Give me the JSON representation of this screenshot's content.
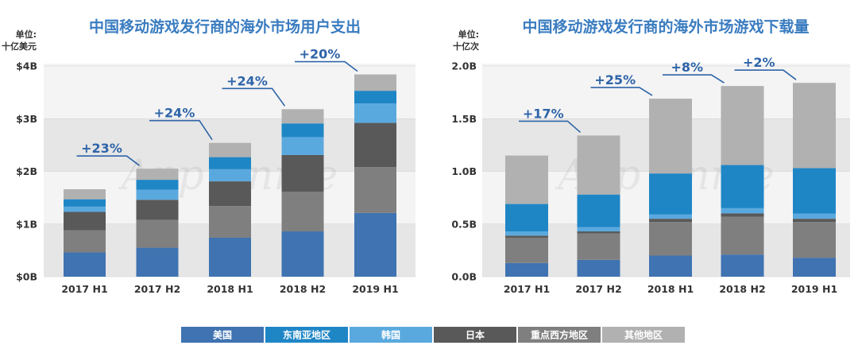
{
  "colors": {
    "美国": "#3f73b1",
    "东南亚地区": "#1f86c6",
    "韩国": "#5aa9de",
    "日本": "#595959",
    "重点西方地区": "#7f7f7f",
    "其他地区": "#b1b1b1"
  },
  "watermark": "App Annie",
  "legend": [
    {
      "name": "美国",
      "color": "#3f73b1",
      "text_color": "#ffffff"
    },
    {
      "name": "东南亚地区",
      "color": "#1f86c6",
      "text_color": "#ffffff"
    },
    {
      "name": "韩国",
      "color": "#5aa9de",
      "text_color": "#ffffff"
    },
    {
      "name": "日本",
      "color": "#595959",
      "text_color": "#ffffff"
    },
    {
      "name": "重点西方地区",
      "color": "#7f7f7f",
      "text_color": "#ffffff"
    },
    {
      "name": "其他地区",
      "color": "#b1b1b1",
      "text_color": "#ffffff"
    }
  ],
  "chart_data": [
    {
      "type": "bar",
      "stacked": true,
      "title": "中国移动游戏发行商的海外市场用户支出",
      "unit_line1": "单位:",
      "unit_line2": "十亿美元",
      "categories": [
        "2017 H1",
        "2017 H2",
        "2018 H1",
        "2018 H2",
        "2019 H1"
      ],
      "ylim": [
        0,
        4
      ],
      "yticks": [
        {
          "value": 0,
          "label": "$0B"
        },
        {
          "value": 1,
          "label": "$1B"
        },
        {
          "value": 2,
          "label": "$2B"
        },
        {
          "value": 3,
          "label": "$3B"
        },
        {
          "value": 4,
          "label": "$4B"
        }
      ],
      "series": [
        {
          "name": "美国",
          "values": [
            0.46,
            0.55,
            0.74,
            0.86,
            1.21
          ]
        },
        {
          "name": "重点西方地区",
          "values": [
            0.42,
            0.53,
            0.6,
            0.75,
            0.87
          ]
        },
        {
          "name": "日本",
          "values": [
            0.35,
            0.38,
            0.47,
            0.7,
            0.84
          ]
        },
        {
          "name": "韩国",
          "values": [
            0.1,
            0.19,
            0.23,
            0.34,
            0.37
          ]
        },
        {
          "name": "东南亚地区",
          "values": [
            0.14,
            0.19,
            0.23,
            0.26,
            0.24
          ]
        },
        {
          "name": "其他地区",
          "values": [
            0.19,
            0.21,
            0.27,
            0.27,
            0.31
          ]
        }
      ],
      "growth_labels": [
        {
          "from": 0,
          "to": 1,
          "label": "+23%"
        },
        {
          "from": 1,
          "to": 2,
          "label": "+24%"
        },
        {
          "from": 2,
          "to": 3,
          "label": "+24%"
        },
        {
          "from": 3,
          "to": 4,
          "label": "+20%"
        }
      ]
    },
    {
      "type": "bar",
      "stacked": true,
      "title": "中国移动游戏发行商的海外市场游戏下载量",
      "unit_line1": "单位:",
      "unit_line2": "十亿次",
      "categories": [
        "2017 H1",
        "2017 H2",
        "2018 H1",
        "2018 H2",
        "2019 H1"
      ],
      "ylim": [
        0,
        2
      ],
      "yticks": [
        {
          "value": 0,
          "label": "0.0B"
        },
        {
          "value": 0.5,
          "label": "0.5B"
        },
        {
          "value": 1,
          "label": "1.0B"
        },
        {
          "value": 1.5,
          "label": "1.5B"
        },
        {
          "value": 2,
          "label": "2.0B"
        }
      ],
      "series": [
        {
          "name": "美国",
          "values": [
            0.13,
            0.16,
            0.2,
            0.21,
            0.18
          ]
        },
        {
          "name": "重点西方地区",
          "values": [
            0.24,
            0.25,
            0.32,
            0.36,
            0.34
          ]
        },
        {
          "name": "日本",
          "values": [
            0.02,
            0.02,
            0.03,
            0.03,
            0.03
          ]
        },
        {
          "name": "韩国",
          "values": [
            0.04,
            0.04,
            0.04,
            0.05,
            0.05
          ]
        },
        {
          "name": "东南亚地区",
          "values": [
            0.26,
            0.31,
            0.39,
            0.41,
            0.43
          ]
        },
        {
          "name": "其他地区",
          "values": [
            0.46,
            0.56,
            0.71,
            0.75,
            0.81
          ]
        }
      ],
      "growth_labels": [
        {
          "from": 0,
          "to": 1,
          "label": "+17%"
        },
        {
          "from": 1,
          "to": 2,
          "label": "+25%"
        },
        {
          "from": 2,
          "to": 3,
          "label": "+8%"
        },
        {
          "from": 3,
          "to": 4,
          "label": "+2%"
        }
      ]
    }
  ]
}
